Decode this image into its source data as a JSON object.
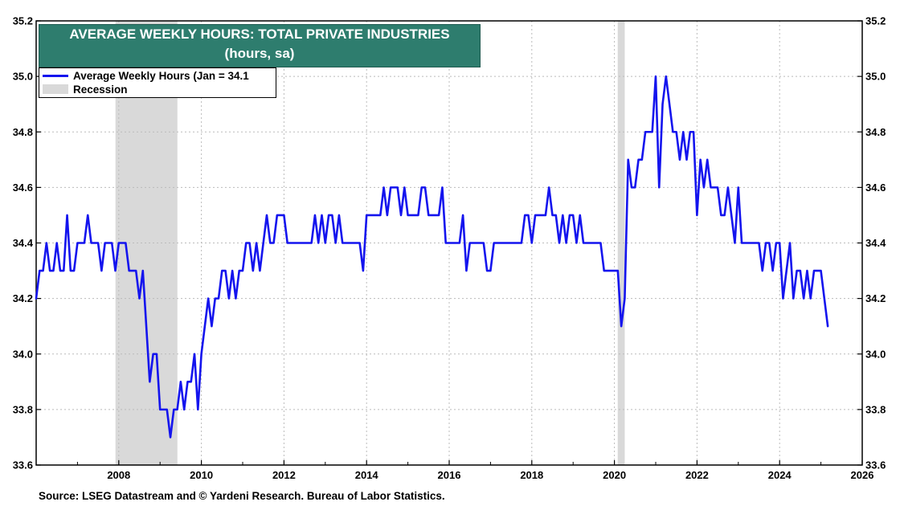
{
  "title_lines": [
    "AVERAGE WEEKLY HOURS: TOTAL PRIVATE INDUSTRIES",
    "(hours, sa)"
  ],
  "legend": {
    "series_label": "Average Weekly Hours (Jan = 34.1",
    "recession_label": "Recession"
  },
  "source": "Source: LSEG Datastream and © Yardeni Research. Bureau of Labor Statistics.",
  "colors": {
    "series": "#1414ee",
    "recession": "#d9d9d9",
    "title_bg": "#2e7d6e",
    "grid": "#bbbbbb"
  },
  "chart_data": {
    "type": "line",
    "title": "AVERAGE WEEKLY HOURS: TOTAL PRIVATE INDUSTRIES",
    "subtitle": "(hours, sa)",
    "xlabel": "",
    "ylabel": "",
    "xlim": [
      2006.0,
      2026.0
    ],
    "ylim": [
      33.6,
      35.2
    ],
    "x_ticks": [
      2008,
      2010,
      2012,
      2014,
      2016,
      2018,
      2020,
      2022,
      2024,
      2026
    ],
    "y_ticks": [
      33.6,
      33.8,
      34.0,
      34.2,
      34.4,
      34.6,
      34.8,
      35.0,
      35.2
    ],
    "y_tick_labels": [
      "33.6",
      "33.8",
      "34.0",
      "34.2",
      "34.4",
      "34.6",
      "34.8",
      "35.0",
      "35.2"
    ],
    "grid": true,
    "legend_position": "top-left",
    "recessions": [
      [
        2007.92,
        2009.42
      ],
      [
        2020.08,
        2020.25
      ]
    ],
    "series": [
      {
        "name": "Average Weekly Hours (Jan = 34.1",
        "x_start": 2006.0,
        "x_step": 0.08333,
        "values": [
          34.2,
          34.3,
          34.3,
          34.4,
          34.3,
          34.3,
          34.4,
          34.3,
          34.3,
          34.5,
          34.3,
          34.3,
          34.4,
          34.4,
          34.4,
          34.5,
          34.4,
          34.4,
          34.4,
          34.3,
          34.4,
          34.4,
          34.4,
          34.3,
          34.4,
          34.4,
          34.4,
          34.3,
          34.3,
          34.3,
          34.2,
          34.3,
          34.1,
          33.9,
          34.0,
          34.0,
          33.8,
          33.8,
          33.8,
          33.7,
          33.8,
          33.8,
          33.9,
          33.8,
          33.9,
          33.9,
          34.0,
          33.8,
          34.0,
          34.1,
          34.2,
          34.1,
          34.2,
          34.2,
          34.3,
          34.3,
          34.2,
          34.3,
          34.2,
          34.3,
          34.3,
          34.4,
          34.4,
          34.3,
          34.4,
          34.3,
          34.4,
          34.5,
          34.4,
          34.4,
          34.5,
          34.5,
          34.5,
          34.4,
          34.4,
          34.4,
          34.4,
          34.4,
          34.4,
          34.4,
          34.4,
          34.5,
          34.4,
          34.5,
          34.4,
          34.5,
          34.5,
          34.4,
          34.5,
          34.4,
          34.4,
          34.4,
          34.4,
          34.4,
          34.4,
          34.3,
          34.5,
          34.5,
          34.5,
          34.5,
          34.5,
          34.6,
          34.5,
          34.6,
          34.6,
          34.6,
          34.5,
          34.6,
          34.5,
          34.5,
          34.5,
          34.5,
          34.6,
          34.6,
          34.5,
          34.5,
          34.5,
          34.5,
          34.6,
          34.4,
          34.4,
          34.4,
          34.4,
          34.4,
          34.5,
          34.3,
          34.4,
          34.4,
          34.4,
          34.4,
          34.4,
          34.3,
          34.3,
          34.4,
          34.4,
          34.4,
          34.4,
          34.4,
          34.4,
          34.4,
          34.4,
          34.4,
          34.5,
          34.5,
          34.4,
          34.5,
          34.5,
          34.5,
          34.5,
          34.6,
          34.5,
          34.5,
          34.4,
          34.5,
          34.4,
          34.5,
          34.5,
          34.4,
          34.5,
          34.4,
          34.4,
          34.4,
          34.4,
          34.4,
          34.4,
          34.3,
          34.3,
          34.3,
          34.3,
          34.3,
          34.1,
          34.2,
          34.7,
          34.6,
          34.6,
          34.7,
          34.7,
          34.8,
          34.8,
          34.8,
          35.0,
          34.6,
          34.9,
          35.0,
          34.9,
          34.8,
          34.8,
          34.7,
          34.8,
          34.7,
          34.8,
          34.8,
          34.5,
          34.7,
          34.6,
          34.7,
          34.6,
          34.6,
          34.6,
          34.5,
          34.5,
          34.6,
          34.5,
          34.4,
          34.6,
          34.4,
          34.4,
          34.4,
          34.4,
          34.4,
          34.4,
          34.3,
          34.4,
          34.4,
          34.3,
          34.4,
          34.4,
          34.2,
          34.3,
          34.4,
          34.2,
          34.3,
          34.3,
          34.2,
          34.3,
          34.2,
          34.3,
          34.3,
          34.3,
          34.2,
          34.1
        ]
      }
    ]
  }
}
